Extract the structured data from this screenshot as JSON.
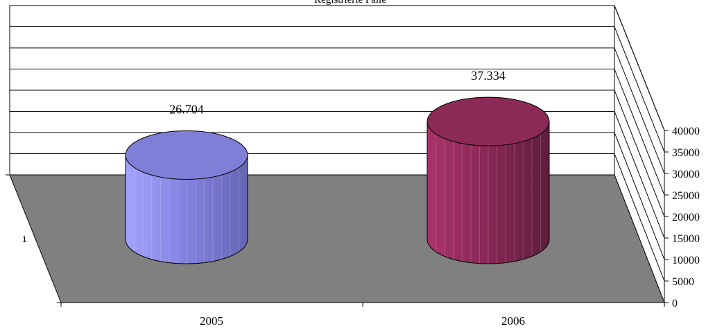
{
  "chart_data": {
    "type": "bar",
    "title": "Registrierte Fälle",
    "categories": [
      "2005",
      "2006"
    ],
    "series_axis_label": "1",
    "series": [
      {
        "values": [
          26704,
          37334
        ]
      }
    ],
    "data_labels": [
      "26.704",
      "37.334"
    ],
    "colors": [
      "#7f7fd8",
      "#8b2a55"
    ],
    "ylim": [
      0,
      40000
    ],
    "yticks": [
      "0",
      "5000",
      "10000",
      "15000",
      "20000",
      "25000",
      "30000",
      "35000",
      "40000"
    ],
    "grid": true,
    "floor_color": "#808080",
    "bar_shape": "cylinder"
  }
}
